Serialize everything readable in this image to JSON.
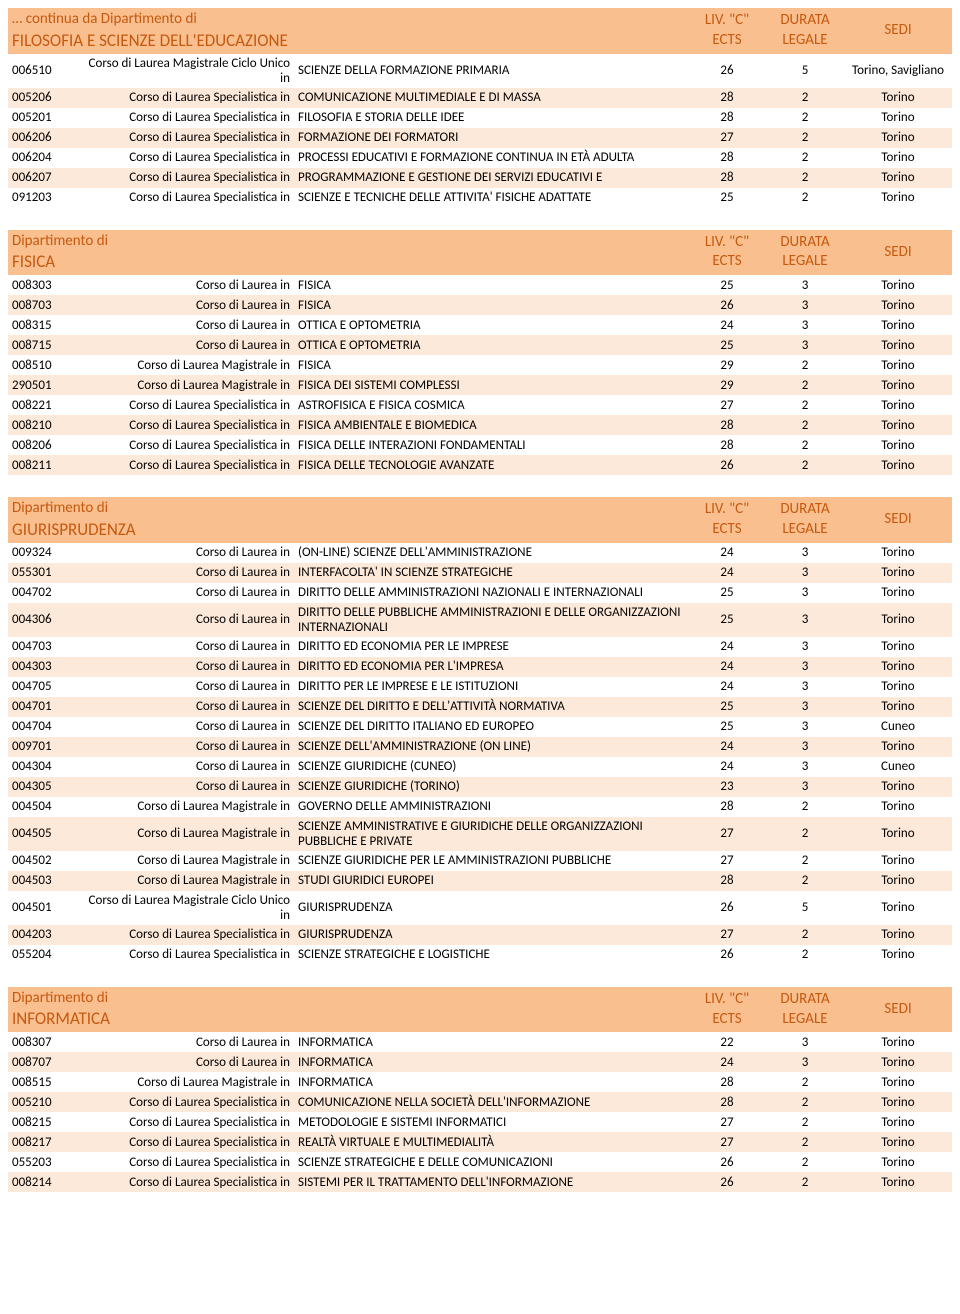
{
  "colors": {
    "header_bg": "#fabf8f",
    "header_text": "#c55a11",
    "row_even": "#fde9d9",
    "row_odd": "#ffffff"
  },
  "columns": {
    "ects_line1": "LIV. \"C\"",
    "ects_line2": "ECTS",
    "durata_line1": "DURATA",
    "durata_line2": "LEGALE",
    "sedi": "SEDI"
  },
  "sections": [
    {
      "title_line1": "… continua da Dipartimento di",
      "title_line2": "FILOSOFIA E SCIENZE DELL'EDUCAZIONE",
      "rows": [
        {
          "code": "006510",
          "type": "Corso di Laurea Magistrale Ciclo Unico in",
          "name": "SCIENZE DELLA FORMAZIONE PRIMARIA",
          "ects": "26",
          "durata": "5",
          "sedi": "Torino, Savigliano"
        },
        {
          "code": "005206",
          "type": "Corso di Laurea Specialistica in",
          "name": "COMUNICAZIONE MULTIMEDIALE E DI MASSA",
          "ects": "28",
          "durata": "2",
          "sedi": "Torino"
        },
        {
          "code": "005201",
          "type": "Corso di Laurea Specialistica in",
          "name": "FILOSOFIA E STORIA DELLE IDEE",
          "ects": "28",
          "durata": "2",
          "sedi": "Torino"
        },
        {
          "code": "006206",
          "type": "Corso di Laurea Specialistica in",
          "name": "FORMAZIONE DEI FORMATORI",
          "ects": "27",
          "durata": "2",
          "sedi": "Torino"
        },
        {
          "code": "006204",
          "type": "Corso di Laurea Specialistica in",
          "name": "PROCESSI EDUCATIVI E FORMAZIONE CONTINUA IN ETÀ ADULTA",
          "ects": "28",
          "durata": "2",
          "sedi": "Torino"
        },
        {
          "code": "006207",
          "type": "Corso di Laurea Specialistica in",
          "name": "PROGRAMMAZIONE E GESTIONE DEI SERVIZI EDUCATIVI E",
          "ects": "28",
          "durata": "2",
          "sedi": "Torino"
        },
        {
          "code": "091203",
          "type": "Corso di Laurea Specialistica in",
          "name": "SCIENZE E TECNICHE DELLE ATTIVITA' FISICHE ADATTATE",
          "ects": "25",
          "durata": "2",
          "sedi": "Torino"
        }
      ]
    },
    {
      "title_line1": "Dipartimento di",
      "title_line2": "FISICA",
      "rows": [
        {
          "code": "008303",
          "type": "Corso di Laurea in",
          "name": "FISICA",
          "ects": "25",
          "durata": "3",
          "sedi": "Torino"
        },
        {
          "code": "008703",
          "type": "Corso di Laurea in",
          "name": "FISICA",
          "ects": "26",
          "durata": "3",
          "sedi": "Torino"
        },
        {
          "code": "008315",
          "type": "Corso di Laurea in",
          "name": "OTTICA E OPTOMETRIA",
          "ects": "24",
          "durata": "3",
          "sedi": "Torino"
        },
        {
          "code": "008715",
          "type": "Corso di Laurea in",
          "name": "OTTICA E OPTOMETRIA",
          "ects": "25",
          "durata": "3",
          "sedi": "Torino"
        },
        {
          "code": "008510",
          "type": "Corso di Laurea Magistrale in",
          "name": "FISICA",
          "ects": "29",
          "durata": "2",
          "sedi": "Torino"
        },
        {
          "code": "290501",
          "type": "Corso di Laurea Magistrale in",
          "name": "FISICA DEI SISTEMI COMPLESSI",
          "ects": "29",
          "durata": "2",
          "sedi": "Torino"
        },
        {
          "code": "008221",
          "type": "Corso di Laurea Specialistica in",
          "name": "ASTROFISICA E FISICA COSMICA",
          "ects": "27",
          "durata": "2",
          "sedi": "Torino"
        },
        {
          "code": "008210",
          "type": "Corso di Laurea Specialistica in",
          "name": "FISICA AMBIENTALE E BIOMEDICA",
          "ects": "28",
          "durata": "2",
          "sedi": "Torino"
        },
        {
          "code": "008206",
          "type": "Corso di Laurea Specialistica in",
          "name": "FISICA DELLE INTERAZIONI FONDAMENTALI",
          "ects": "28",
          "durata": "2",
          "sedi": "Torino"
        },
        {
          "code": "008211",
          "type": "Corso di Laurea Specialistica in",
          "name": "FISICA DELLE TECNOLOGIE AVANZATE",
          "ects": "26",
          "durata": "2",
          "sedi": "Torino"
        }
      ]
    },
    {
      "title_line1": "Dipartimento di",
      "title_line2": "GIURISPRUDENZA",
      "rows": [
        {
          "code": "009324",
          "type": "Corso di Laurea in",
          "name": "(ON-LINE) SCIENZE DELL'AMMINISTRAZIONE",
          "ects": "24",
          "durata": "3",
          "sedi": "Torino"
        },
        {
          "code": "055301",
          "type": "Corso di Laurea in",
          "name": "INTERFACOLTA' IN SCIENZE STRATEGICHE",
          "ects": "24",
          "durata": "3",
          "sedi": "Torino"
        },
        {
          "code": "004702",
          "type": "Corso di Laurea in",
          "name": "DIRITTO DELLE AMMINISTRAZIONI NAZIONALI E INTERNAZIONALI",
          "ects": "25",
          "durata": "3",
          "sedi": "Torino"
        },
        {
          "code": "004306",
          "type": "Corso di Laurea in",
          "name": "DIRITTO DELLE PUBBLICHE AMMINISTRAZIONI E DELLE ORGANIZZAZIONI INTERNAZIONALI",
          "ects": "25",
          "durata": "3",
          "sedi": "Torino"
        },
        {
          "code": "004703",
          "type": "Corso di Laurea in",
          "name": "DIRITTO ED ECONOMIA PER LE IMPRESE",
          "ects": "24",
          "durata": "3",
          "sedi": "Torino"
        },
        {
          "code": "004303",
          "type": "Corso di Laurea in",
          "name": "DIRITTO ED ECONOMIA PER L'IMPRESA",
          "ects": "24",
          "durata": "3",
          "sedi": "Torino"
        },
        {
          "code": "004705",
          "type": "Corso di Laurea in",
          "name": "DIRITTO PER LE IMPRESE E LE ISTITUZIONI",
          "ects": "24",
          "durata": "3",
          "sedi": "Torino"
        },
        {
          "code": "004701",
          "type": "Corso di Laurea in",
          "name": "SCIENZE DEL DIRITTO E DELL'ATTIVITÀ NORMATIVA",
          "ects": "25",
          "durata": "3",
          "sedi": "Torino"
        },
        {
          "code": "004704",
          "type": "Corso di Laurea in",
          "name": "SCIENZE DEL DIRITTO ITALIANO ED EUROPEO",
          "ects": "25",
          "durata": "3",
          "sedi": "Cuneo"
        },
        {
          "code": "009701",
          "type": "Corso di Laurea in",
          "name": "SCIENZE DELL'AMMINISTRAZIONE (ON LINE)",
          "ects": "24",
          "durata": "3",
          "sedi": "Torino"
        },
        {
          "code": "004304",
          "type": "Corso di Laurea in",
          "name": "SCIENZE GIURIDICHE (CUNEO)",
          "ects": "24",
          "durata": "3",
          "sedi": "Cuneo"
        },
        {
          "code": "004305",
          "type": "Corso di Laurea in",
          "name": "SCIENZE GIURIDICHE (TORINO)",
          "ects": "23",
          "durata": "3",
          "sedi": "Torino"
        },
        {
          "code": "004504",
          "type": "Corso di Laurea Magistrale in",
          "name": "GOVERNO DELLE AMMINISTRAZIONI",
          "ects": "28",
          "durata": "2",
          "sedi": "Torino"
        },
        {
          "code": "004505",
          "type": "Corso di Laurea Magistrale in",
          "name": "SCIENZE AMMINISTRATIVE E GIURIDICHE DELLE ORGANIZZAZIONI PUBBLICHE E PRIVATE",
          "ects": "27",
          "durata": "2",
          "sedi": "Torino"
        },
        {
          "code": "004502",
          "type": "Corso di Laurea Magistrale in",
          "name": "SCIENZE GIURIDICHE PER LE AMMINISTRAZIONI PUBBLICHE",
          "ects": "27",
          "durata": "2",
          "sedi": "Torino"
        },
        {
          "code": "004503",
          "type": "Corso di Laurea Magistrale in",
          "name": "STUDI GIURIDICI EUROPEI",
          "ects": "28",
          "durata": "2",
          "sedi": "Torino"
        },
        {
          "code": "004501",
          "type": "Corso di Laurea Magistrale Ciclo Unico in",
          "name": "GIURISPRUDENZA",
          "ects": "26",
          "durata": "5",
          "sedi": "Torino"
        },
        {
          "code": "004203",
          "type": "Corso di Laurea Specialistica in",
          "name": "GIURISPRUDENZA",
          "ects": "27",
          "durata": "2",
          "sedi": "Torino"
        },
        {
          "code": "055204",
          "type": "Corso di Laurea Specialistica in",
          "name": "SCIENZE STRATEGICHE E LOGISTICHE",
          "ects": "26",
          "durata": "2",
          "sedi": "Torino"
        }
      ]
    },
    {
      "title_line1": "Dipartimento di",
      "title_line2": "INFORMATICA",
      "rows": [
        {
          "code": "008307",
          "type": "Corso di Laurea in",
          "name": "INFORMATICA",
          "ects": "22",
          "durata": "3",
          "sedi": "Torino"
        },
        {
          "code": "008707",
          "type": "Corso di Laurea in",
          "name": "INFORMATICA",
          "ects": "24",
          "durata": "3",
          "sedi": "Torino"
        },
        {
          "code": "008515",
          "type": "Corso di Laurea Magistrale in",
          "name": "INFORMATICA",
          "ects": "28",
          "durata": "2",
          "sedi": "Torino"
        },
        {
          "code": "005210",
          "type": "Corso di Laurea Specialistica in",
          "name": "COMUNICAZIONE NELLA SOCIETÀ DELL'INFORMAZIONE",
          "ects": "28",
          "durata": "2",
          "sedi": "Torino"
        },
        {
          "code": "008215",
          "type": "Corso di Laurea Specialistica in",
          "name": "METODOLOGIE E SISTEMI INFORMATICI",
          "ects": "27",
          "durata": "2",
          "sedi": "Torino"
        },
        {
          "code": "008217",
          "type": "Corso di Laurea Specialistica in",
          "name": "REALTÀ VIRTUALE E MULTIMEDIALITÀ",
          "ects": "27",
          "durata": "2",
          "sedi": "Torino"
        },
        {
          "code": "055203",
          "type": "Corso di Laurea Specialistica in",
          "name": "SCIENZE STRATEGICHE E DELLE COMUNICAZIONI",
          "ects": "26",
          "durata": "2",
          "sedi": "Torino"
        },
        {
          "code": "008214",
          "type": "Corso di Laurea Specialistica in",
          "name": "SISTEMI PER IL TRATTAMENTO DELL'INFORMAZIONE",
          "ects": "26",
          "durata": "2",
          "sedi": "Torino"
        }
      ]
    }
  ]
}
